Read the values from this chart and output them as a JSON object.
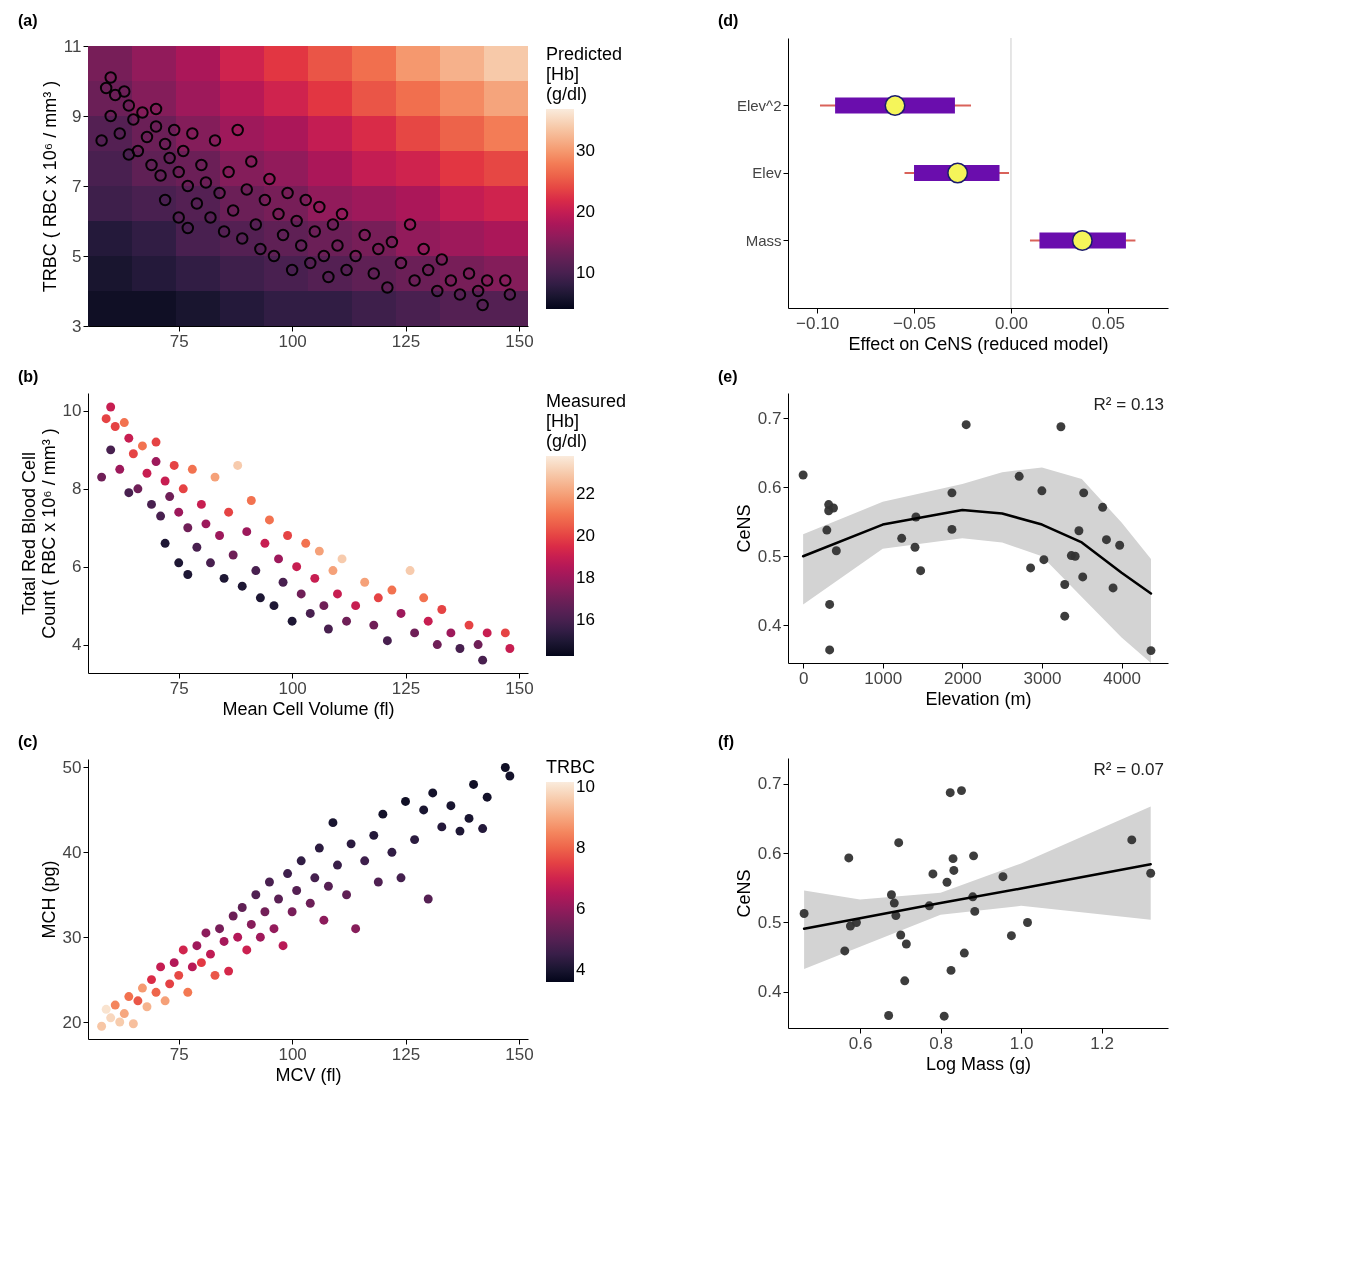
{
  "chart_data": [
    {
      "type": "heatmap",
      "title": "(a)",
      "ylabel": "TRBC ( RBC x 10⁶ / mm³ )",
      "clabel": "Predicted [Hb] (g/dl)",
      "xlim": [
        55,
        152
      ],
      "ylim": [
        3,
        11
      ],
      "xticks": [
        75,
        100,
        125,
        150
      ],
      "yticks": [
        3,
        5,
        7,
        9,
        11
      ],
      "clim": [
        4,
        37
      ],
      "cticks": [
        10,
        20,
        30
      ],
      "marker": "circle",
      "cells": [
        [
          14,
          16,
          18,
          21,
          23,
          25,
          27,
          30,
          32,
          34
        ],
        [
          13,
          15,
          17,
          19,
          21,
          23,
          25,
          27,
          29,
          31
        ],
        [
          11,
          13,
          15,
          17,
          18,
          20,
          22,
          24,
          26,
          28
        ],
        [
          10,
          12,
          13,
          15,
          16,
          18,
          20,
          21,
          23,
          24
        ],
        [
          9,
          10,
          11,
          13,
          14,
          16,
          17,
          18,
          20,
          21
        ],
        [
          7,
          8,
          10,
          11,
          12,
          13,
          14,
          16,
          17,
          18
        ],
        [
          6,
          7,
          8,
          9,
          10,
          11,
          12,
          13,
          14,
          15
        ],
        [
          5,
          5,
          6,
          7,
          8,
          8,
          9,
          10,
          11,
          11
        ]
      ],
      "series": [
        {
          "type": "scatter",
          "color": "#000000",
          "x": [
            58,
            59,
            60,
            60,
            61,
            62,
            63,
            64,
            64,
            65,
            66,
            67,
            68,
            69,
            70,
            70,
            71,
            72,
            72,
            73,
            74,
            75,
            75,
            76,
            77,
            77,
            78,
            79,
            80,
            81,
            82,
            83,
            84,
            85,
            86,
            87,
            88,
            89,
            90,
            91,
            92,
            93,
            94,
            95,
            96,
            97,
            98,
            99,
            100,
            101,
            102,
            103,
            104,
            105,
            106,
            107,
            108,
            109,
            110,
            111,
            112,
            114,
            116,
            118,
            119,
            121,
            122,
            124,
            126,
            127,
            129,
            130,
            132,
            133,
            135,
            137,
            139,
            141,
            142,
            143,
            147,
            148
          ],
          "values": [
            8.3,
            9.8,
            10.1,
            9.0,
            9.6,
            8.5,
            9.7,
            9.3,
            7.9,
            8.9,
            8.0,
            9.1,
            8.4,
            7.6,
            9.2,
            8.7,
            7.3,
            6.6,
            8.2,
            7.8,
            8.6,
            6.1,
            7.4,
            8.0,
            7.0,
            5.8,
            8.5,
            6.5,
            7.6,
            7.1,
            6.1,
            8.3,
            6.8,
            5.7,
            7.4,
            6.3,
            8.6,
            5.5,
            6.9,
            7.7,
            5.9,
            5.2,
            6.6,
            7.2,
            5.0,
            6.2,
            5.6,
            6.8,
            4.6,
            6.0,
            5.3,
            6.6,
            4.8,
            5.7,
            6.4,
            5.0,
            4.4,
            5.9,
            5.3,
            6.2,
            4.6,
            5.0,
            5.6,
            4.5,
            5.2,
            4.1,
            5.4,
            4.8,
            5.9,
            4.3,
            5.2,
            4.6,
            4.0,
            4.9,
            4.3,
            3.9,
            4.5,
            4.0,
            3.6,
            4.3,
            4.3,
            3.9
          ]
        }
      ]
    },
    {
      "type": "box",
      "title": "(d)",
      "orientation": "horizontal",
      "categories": [
        "Elev^2",
        "Elev",
        "Mass"
      ],
      "xlabel": "Effect on CeNS (reduced model)",
      "xlim": [
        -0.115,
        0.081
      ],
      "xticks": [
        {
          "value": -0.1,
          "label": "−0.10"
        },
        {
          "value": -0.05,
          "label": "−0.05"
        },
        {
          "value": 0,
          "label": "0.00"
        },
        {
          "value": 0.05,
          "label": "0.05"
        }
      ],
      "ref_lines": [
        {
          "axis": "x",
          "value": 0,
          "color": "#dddddd"
        }
      ],
      "series": [
        {
          "color": "#6a0dad",
          "boxes": [
            {
              "low": -0.0985,
              "q1": -0.0907,
              "median": -0.0598,
              "q3": -0.0289,
              "high": -0.0206
            },
            {
              "low": -0.0549,
              "q1": -0.05,
              "median": -0.0275,
              "q3": -0.0059,
              "high": -0.001
            },
            {
              "low": 0.0098,
              "q1": 0.0147,
              "median": 0.0368,
              "q3": 0.0593,
              "high": 0.0642
            }
          ]
        }
      ]
    },
    {
      "type": "scatter",
      "title": "(b)",
      "xlabel": "Mean Cell Volume (fl)",
      "ylabel": "Total Red Blood Cell Count ( RBC x 10⁶ / mm³ )",
      "clabel": "Measured [Hb] (g/dl)",
      "xlim": [
        55,
        152
      ],
      "ylim": [
        3.27,
        10.46
      ],
      "xticks": [
        75,
        100,
        125,
        150
      ],
      "yticks": [
        4,
        6,
        8,
        10
      ],
      "clim": [
        14.3,
        23.8
      ],
      "cticks": [
        16,
        18,
        20,
        22
      ],
      "marker": "circle",
      "x": [
        58,
        59,
        60,
        60,
        61,
        62,
        63,
        64,
        64,
        65,
        66,
        67,
        68,
        69,
        70,
        70,
        71,
        72,
        72,
        73,
        74,
        75,
        75,
        76,
        77,
        77,
        78,
        79,
        80,
        81,
        82,
        83,
        84,
        85,
        86,
        87,
        88,
        89,
        90,
        91,
        92,
        93,
        94,
        95,
        96,
        97,
        98,
        99,
        100,
        101,
        102,
        103,
        104,
        105,
        106,
        107,
        108,
        109,
        110,
        111,
        112,
        114,
        116,
        118,
        119,
        121,
        122,
        124,
        126,
        127,
        129,
        130,
        132,
        133,
        135,
        137,
        139,
        141,
        142,
        143,
        147,
        148
      ],
      "values": [
        8.3,
        9.8,
        10.1,
        9.0,
        9.6,
        8.5,
        9.7,
        9.3,
        7.9,
        8.9,
        8.0,
        9.1,
        8.4,
        7.6,
        9.2,
        8.7,
        7.3,
        6.6,
        8.2,
        7.8,
        8.6,
        6.1,
        7.4,
        8.0,
        7.0,
        5.8,
        8.5,
        6.5,
        7.6,
        7.1,
        6.1,
        8.3,
        6.8,
        5.7,
        7.4,
        6.3,
        8.6,
        5.5,
        6.9,
        7.7,
        5.9,
        5.2,
        6.6,
        7.2,
        5.0,
        6.2,
        5.6,
        6.8,
        4.6,
        6.0,
        5.3,
        6.6,
        4.8,
        5.7,
        6.4,
        5.0,
        4.4,
        5.9,
        5.3,
        6.2,
        4.6,
        5.0,
        5.6,
        4.5,
        5.2,
        4.1,
        5.4,
        4.8,
        5.9,
        4.3,
        5.2,
        4.6,
        4.0,
        4.9,
        4.3,
        3.9,
        4.5,
        4.0,
        3.6,
        4.3,
        4.3,
        3.9
      ],
      "cvalues": [
        17,
        20,
        19,
        16,
        20,
        18,
        21,
        19,
        16,
        20,
        17,
        21,
        19,
        16,
        20,
        18,
        16,
        15,
        19,
        17,
        20,
        15,
        18,
        20,
        17,
        15,
        21,
        16,
        19,
        18,
        16,
        22,
        18,
        15,
        20,
        17,
        23,
        15,
        18,
        21,
        16,
        15,
        19,
        21,
        15,
        18,
        16,
        20,
        15,
        19,
        17,
        21,
        16,
        19,
        22,
        17,
        16,
        22,
        19,
        23,
        17,
        19,
        22,
        17,
        20,
        16,
        21,
        18,
        23,
        17,
        21,
        19,
        17,
        20,
        18,
        16,
        20,
        17,
        16,
        19,
        20,
        19
      ]
    },
    {
      "type": "scatter",
      "title": "(e)",
      "xlabel": "Elevation (m)",
      "ylabel": "CeNS",
      "xlim": [
        -190,
        4583
      ],
      "ylim": [
        0.345,
        0.737
      ],
      "xticks": [
        0,
        1000,
        2000,
        3000,
        4000
      ],
      "yticks": [
        0.4,
        0.5,
        0.6,
        0.7
      ],
      "annotations": [
        "R² = 0.13"
      ],
      "series": [
        {
          "type": "scatter",
          "marker": "circle",
          "color": "#333333",
          "x": [
            0,
            321,
            321,
            381,
            298,
            417,
            333,
            333,
            2048,
            1238,
            1405,
            1417,
            1476,
            1869,
            1869,
            3238,
            2714,
            2999,
            3024,
            2857,
            3286,
            3286,
            3524,
            3762,
            3464,
            3369,
            3417,
            3512,
            3810,
            3976,
            3893,
            4369
          ],
          "values": [
            0.618,
            0.575,
            0.566,
            0.57,
            0.538,
            0.508,
            0.43,
            0.364,
            0.691,
            0.526,
            0.513,
            0.557,
            0.479,
            0.592,
            0.539,
            0.688,
            0.616,
            0.595,
            0.495,
            0.483,
            0.459,
            0.413,
            0.592,
            0.571,
            0.537,
            0.501,
            0.5,
            0.47,
            0.524,
            0.516,
            0.454,
            0.363
          ]
        },
        {
          "type": "line",
          "color": "#000000",
          "x": [
            0,
            1000,
            2000,
            2500,
            3000,
            3500,
            4000,
            4369
          ],
          "values": [
            0.5,
            0.546,
            0.567,
            0.562,
            0.546,
            0.52,
            0.476,
            0.446
          ],
          "lower": [
            0.43,
            0.511,
            0.526,
            0.52,
            0.5,
            0.441,
            0.382,
            0.345
          ],
          "upper": [
            0.532,
            0.579,
            0.605,
            0.622,
            0.629,
            0.612,
            0.549,
            0.496
          ]
        }
      ]
    },
    {
      "type": "scatter",
      "title": "(c)",
      "xlabel": "MCV (fl)",
      "ylabel": "MCH (pg)",
      "clabel": "TRBC",
      "xlim": [
        55,
        152
      ],
      "ylim": [
        18,
        51
      ],
      "xticks": [
        75,
        100,
        125,
        150
      ],
      "yticks": [
        20,
        30,
        40,
        50
      ],
      "clim": [
        3.6,
        10.15
      ],
      "cticks": [
        4,
        6,
        8,
        10
      ],
      "marker": "circle",
      "x": [
        58,
        59,
        60,
        61,
        62,
        63,
        64,
        65,
        66,
        67,
        68,
        69,
        70,
        71,
        72,
        73,
        74,
        75,
        76,
        77,
        78,
        79,
        80,
        81,
        82,
        83,
        84,
        85,
        86,
        87,
        88,
        89,
        90,
        91,
        92,
        93,
        94,
        95,
        96,
        97,
        98,
        99,
        100,
        101,
        102,
        104,
        105,
        106,
        107,
        108,
        109,
        110,
        112,
        113,
        114,
        116,
        118,
        119,
        120,
        122,
        124,
        125,
        127,
        129,
        130,
        131,
        133,
        135,
        137,
        139,
        140,
        142,
        143,
        147,
        148
      ],
      "values": [
        19.5,
        21.5,
        20.5,
        22,
        20,
        21,
        23,
        19.8,
        22.5,
        24,
        21.8,
        25,
        23.5,
        26.5,
        22.5,
        24.5,
        27,
        25.5,
        28.5,
        23.5,
        26.5,
        29,
        27,
        30.5,
        28,
        25.5,
        31,
        29.5,
        26,
        32.5,
        30,
        33.5,
        28.5,
        31.5,
        35,
        30,
        33,
        36.5,
        31,
        34.5,
        29,
        37.5,
        33,
        35.5,
        39,
        34,
        37,
        40.5,
        32,
        36,
        43.5,
        38.5,
        35,
        41,
        31,
        39,
        42,
        36.5,
        44.5,
        40,
        37,
        46,
        41.5,
        45,
        34.5,
        47,
        43,
        45.5,
        42.5,
        44,
        48,
        42.8,
        46.5,
        50,
        49
      ],
      "cvalues": [
        9.5,
        10,
        9.8,
        8.5,
        9.6,
        9,
        8.2,
        9.4,
        7.8,
        8.8,
        9.2,
        7.2,
        8,
        6.8,
        8.9,
        7.5,
        6.5,
        7.6,
        7,
        8.3,
        6.6,
        6.2,
        7.4,
        5.9,
        6.7,
        7.8,
        5.6,
        6.3,
        7.1,
        5.4,
        6.5,
        5.2,
        6.9,
        5.8,
        4.9,
        6.2,
        5.5,
        4.8,
        6,
        5.1,
        6.6,
        4.6,
        5.6,
        5,
        4.4,
        5.4,
        4.7,
        4.3,
        5.9,
        5,
        4,
        4.5,
        5.2,
        4.3,
        5.8,
        4.6,
        4.2,
        4.9,
        3.9,
        4.4,
        4.7,
        3.8,
        4.3,
        4,
        5,
        3.9,
        4.2,
        4,
        4.1,
        4,
        3.8,
        4.2,
        3.9,
        3.8,
        3.9
      ]
    },
    {
      "type": "scatter",
      "title": "(f)",
      "xlabel": "Log Mass (g)",
      "ylabel": "CeNS",
      "xlim": [
        0.421,
        1.365
      ],
      "ylim": [
        0.348,
        0.737
      ],
      "xticks": [
        0.6,
        0.8,
        {
          "value": 1.0,
          "label": "1.0"
        },
        1.2
      ],
      "yticks": [
        0.4,
        0.5,
        0.6,
        0.7
      ],
      "annotations": [
        "R² = 0.07"
      ],
      "series": [
        {
          "type": "scatter",
          "marker": "circle",
          "color": "#333333",
          "x": [
            0.461,
            0.572,
            0.562,
            0.576,
            0.591,
            0.696,
            0.678,
            0.685,
            0.689,
            0.701,
            0.715,
            0.711,
            0.671,
            0.772,
            0.781,
            0.816,
            0.824,
            0.852,
            0.831,
            0.833,
            0.882,
            0.88,
            0.885,
            0.859,
            0.826,
            0.809,
            0.955,
            0.976,
            1.016,
            1.275,
            1.322
          ],
          "values": [
            0.513,
            0.593,
            0.459,
            0.495,
            0.5,
            0.615,
            0.54,
            0.528,
            0.51,
            0.482,
            0.469,
            0.416,
            0.366,
            0.524,
            0.57,
            0.558,
            0.687,
            0.69,
            0.592,
            0.575,
            0.596,
            0.537,
            0.516,
            0.456,
            0.431,
            0.365,
            0.566,
            0.481,
            0.5,
            0.619,
            0.571
          ]
        },
        {
          "type": "line",
          "color": "#000000",
          "x": [
            0.461,
            0.6,
            0.8,
            1.0,
            1.322
          ],
          "values": [
            0.491,
            0.506,
            0.528,
            0.549,
            0.584
          ],
          "lower": [
            0.433,
            0.465,
            0.511,
            0.524,
            0.504
          ],
          "upper": [
            0.546,
            0.533,
            0.543,
            0.585,
            0.667
          ]
        }
      ]
    }
  ]
}
